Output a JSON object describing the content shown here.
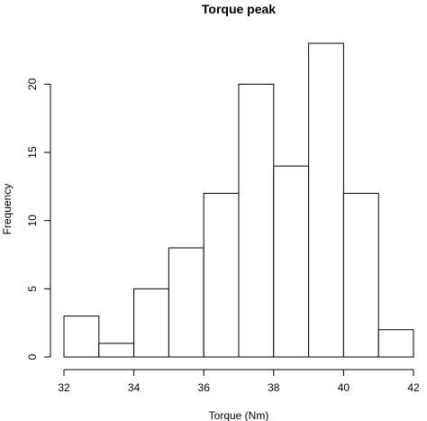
{
  "chart_data": {
    "type": "bar",
    "title": "Torque peak",
    "xlabel": "Torque (Nm)",
    "ylabel": "Frequency",
    "bins": [
      [
        32,
        33
      ],
      [
        33,
        34
      ],
      [
        34,
        35
      ],
      [
        35,
        36
      ],
      [
        36,
        37
      ],
      [
        37,
        38
      ],
      [
        38,
        39
      ],
      [
        39,
        40
      ],
      [
        40,
        41
      ],
      [
        41,
        42
      ]
    ],
    "values": [
      3,
      1,
      5,
      8,
      12,
      20,
      14,
      23,
      12,
      2
    ],
    "xlim": [
      32,
      42
    ],
    "ylim": [
      0,
      23
    ],
    "xticks": [
      32,
      34,
      36,
      38,
      40,
      42
    ],
    "yticks": [
      0,
      5,
      10,
      15,
      20
    ],
    "grid": false,
    "legend": "none"
  }
}
